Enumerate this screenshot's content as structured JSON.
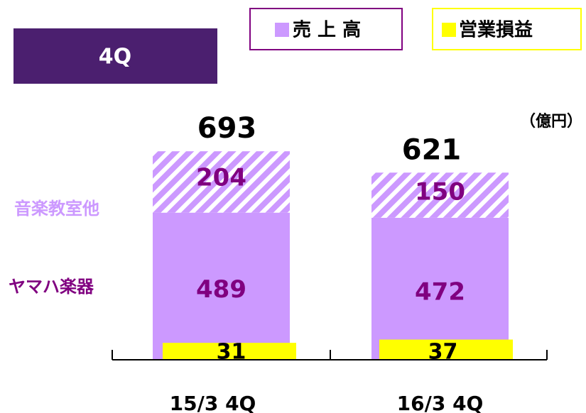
{
  "chart_data": {
    "type": "stacked-bar",
    "title": "4Q",
    "unit": "（億円）",
    "categories": [
      "15/3 4Q",
      "16/3 4Q"
    ],
    "series": [
      {
        "name": "ヤマハ楽器",
        "color": "#cc99ff",
        "label_color": "#800080",
        "values": [
          489,
          472
        ]
      },
      {
        "name": "音楽教室他",
        "color": "#cc99ff",
        "label_color": "#800080",
        "pattern": "hatch",
        "values": [
          204,
          150
        ]
      }
    ],
    "totals": [
      693,
      621
    ],
    "sales_legend": "売 上 高",
    "sales_legend_color": "#cc99ff",
    "sales_legend_border": "#800080",
    "profit": {
      "name": "営業損益",
      "color": "#ffff00",
      "values": [
        31,
        37
      ]
    }
  }
}
